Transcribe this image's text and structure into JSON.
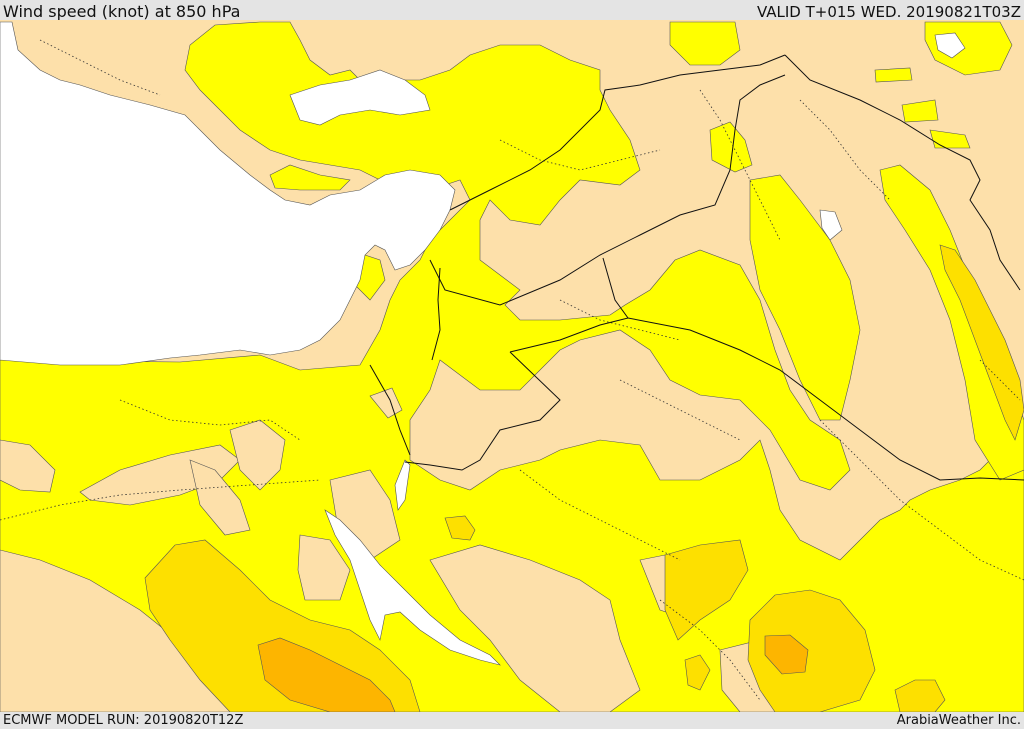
{
  "header": {
    "title": "Wind speed (knot) at 850 hPa",
    "valid": "VALID T+015 WED. 20190821T03Z"
  },
  "footer": {
    "model_run": "ECMWF MODEL RUN: 20190820T12Z",
    "credit": "ArabiaWeather Inc."
  },
  "map": {
    "colors": {
      "sea": "#ffffff",
      "calm": "#fde0aa",
      "band_1": "#ffff00",
      "band_2": "#fde000",
      "band_3": "#fdb500"
    }
  }
}
